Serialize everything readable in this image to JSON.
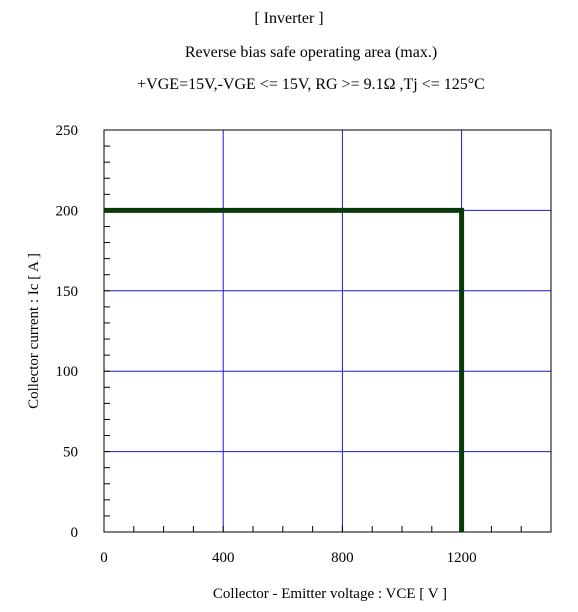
{
  "chart_data": {
    "type": "line",
    "title": "[ Inverter ]",
    "subtitle": "Reverse bias safe operating area (max.)",
    "conditions": "+VGE=15V,-VGE <= 15V, RG >= 9.1Ω ,Tj <= 125°C",
    "xlabel": "Collector - Emitter voltage : VCE [ V ]",
    "ylabel": "Collector current : Ic [ A ]",
    "xlim": [
      0,
      1500
    ],
    "ylim": [
      0,
      250
    ],
    "x_ticks": [
      0,
      400,
      800,
      1200
    ],
    "x_minor_step": 100,
    "y_ticks": [
      0,
      50,
      100,
      150,
      200,
      250
    ],
    "y_minor_step": 10,
    "grid": true,
    "series": [
      {
        "x": [
          0,
          1200,
          1200
        ],
        "y": [
          200,
          200,
          0
        ]
      }
    ],
    "colors": {
      "grid": "#1a1ad6",
      "series": "#0a3a0a",
      "frame": "#000000"
    }
  }
}
